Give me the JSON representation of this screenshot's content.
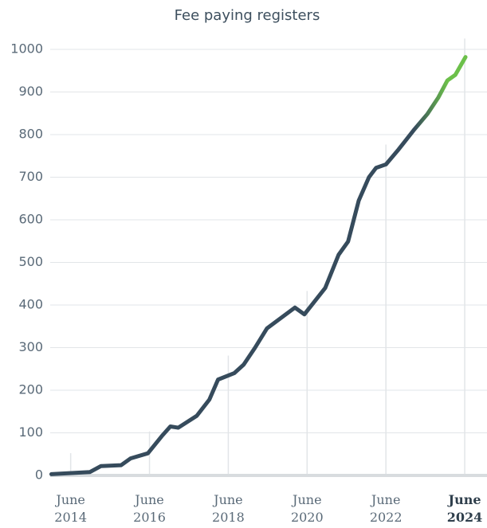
{
  "chart_data": {
    "type": "line",
    "title": "Fee paying registers",
    "x": [
      2014.01,
      2014.99,
      2015.27,
      2015.78,
      2016.02,
      2016.46,
      2016.81,
      2017.03,
      2017.23,
      2017.7,
      2018.02,
      2018.24,
      2018.65,
      2018.89,
      2019.18,
      2019.48,
      2020.19,
      2020.43,
      2020.96,
      2021.3,
      2021.54,
      2021.81,
      2022.07,
      2022.25,
      2022.5,
      2022.82,
      2023.22,
      2023.55,
      2023.83,
      2024.06,
      2024.26,
      2024.52
    ],
    "series": [
      {
        "name": "Fee paying registers",
        "color": "#364b5c",
        "highlight_color": "#6cc04a",
        "values": [
          3,
          8,
          22,
          24,
          40,
          52,
          92,
          115,
          112,
          140,
          178,
          225,
          240,
          260,
          300,
          345,
          394,
          378,
          440,
          518,
          549,
          645,
          700,
          722,
          730,
          765,
          812,
          848,
          887,
          927,
          940,
          982
        ]
      }
    ],
    "xlim": [
      2013.9,
      2024.6
    ],
    "xticks": [
      {
        "value": 2014.5,
        "label": "June 2014"
      },
      {
        "value": 2016.5,
        "label": "June 2016"
      },
      {
        "value": 2018.5,
        "label": "June 2018"
      },
      {
        "value": 2020.5,
        "label": "June 2020"
      },
      {
        "value": 2022.5,
        "label": "June 2022"
      },
      {
        "value": 2024.5,
        "label": "June 2024"
      }
    ],
    "ylim": [
      0,
      1000
    ],
    "yticks": [
      0,
      100,
      200,
      300,
      400,
      500,
      600,
      700,
      800,
      900,
      1000
    ],
    "grid": true
  }
}
